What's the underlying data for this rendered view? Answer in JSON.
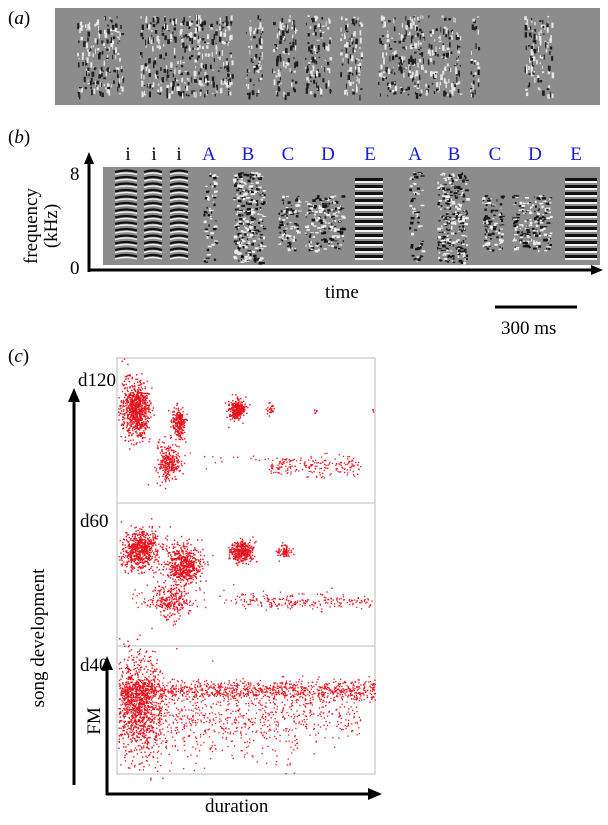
{
  "figure": {
    "panel_a": {
      "label_letter": "a"
    },
    "panel_b": {
      "label_letter": "b",
      "intro_note_label": "i",
      "syllable_labels": [
        "A",
        "B",
        "C",
        "D",
        "E",
        "A",
        "B",
        "C",
        "D",
        "E"
      ],
      "syllable_color": "#1a1ad0",
      "y_axis_label_line1": "frequency",
      "y_axis_label_line2": "(kHz)",
      "y_tick_top": "8",
      "y_tick_bottom": "0",
      "x_axis_label": "time",
      "scale_bar_label": "300 ms"
    },
    "panel_c": {
      "label_letter": "c",
      "y_axis_label": "song development",
      "inner_y_label": "FM",
      "x_axis_label": "duration",
      "day_labels": [
        "d120",
        "d60",
        "d40"
      ],
      "point_color": "#e8101a"
    }
  }
}
